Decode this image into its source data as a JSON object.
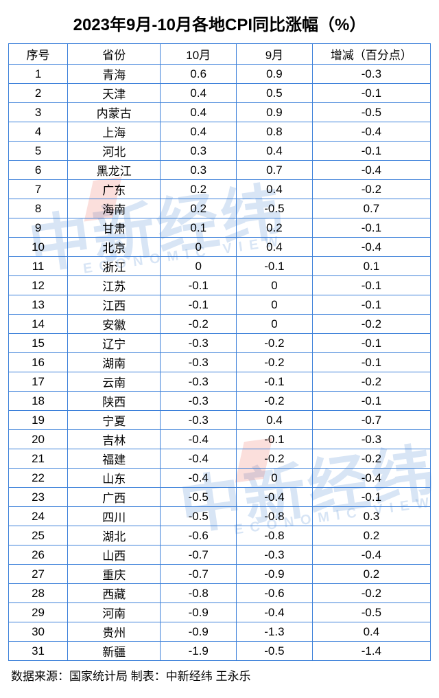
{
  "title": "2023年9月-10月各地CPI同比涨幅（%）",
  "table": {
    "type": "table",
    "border_color": "#3a7fd9",
    "background_color": "#ffffff",
    "text_color": "#000000",
    "header_fontsize": 17,
    "cell_fontsize": 17,
    "title_fontsize": 24,
    "column_widths_pct": [
      14,
      22,
      18,
      18,
      28
    ],
    "columns": [
      "序号",
      "省份",
      "10月",
      "9月",
      "增减（百分点）"
    ],
    "rows": [
      [
        "1",
        "青海",
        "0.6",
        "0.9",
        "-0.3"
      ],
      [
        "2",
        "天津",
        "0.4",
        "0.5",
        "-0.1"
      ],
      [
        "3",
        "内蒙古",
        "0.4",
        "0.9",
        "-0.5"
      ],
      [
        "4",
        "上海",
        "0.4",
        "0.8",
        "-0.4"
      ],
      [
        "5",
        "河北",
        "0.3",
        "0.4",
        "-0.1"
      ],
      [
        "6",
        "黑龙江",
        "0.3",
        "0.7",
        "-0.4"
      ],
      [
        "7",
        "广东",
        "0.2",
        "0.4",
        "-0.2"
      ],
      [
        "8",
        "海南",
        "0.2",
        "-0.5",
        "0.7"
      ],
      [
        "9",
        "甘肃",
        "0.1",
        "0.2",
        "-0.1"
      ],
      [
        "10",
        "北京",
        "0",
        "0.4",
        "-0.4"
      ],
      [
        "11",
        "浙江",
        "0",
        "-0.1",
        "0.1"
      ],
      [
        "12",
        "江苏",
        "-0.1",
        "0",
        "-0.1"
      ],
      [
        "13",
        "江西",
        "-0.1",
        "0",
        "-0.1"
      ],
      [
        "14",
        "安徽",
        "-0.2",
        "0",
        "-0.2"
      ],
      [
        "15",
        "辽宁",
        "-0.3",
        "-0.2",
        "-0.1"
      ],
      [
        "16",
        "湖南",
        "-0.3",
        "-0.2",
        "-0.1"
      ],
      [
        "17",
        "云南",
        "-0.3",
        "-0.1",
        "-0.2"
      ],
      [
        "18",
        "陕西",
        "-0.3",
        "-0.2",
        "-0.1"
      ],
      [
        "19",
        "宁夏",
        "-0.3",
        "0.4",
        "-0.7"
      ],
      [
        "20",
        "吉林",
        "-0.4",
        "-0.1",
        "-0.3"
      ],
      [
        "21",
        "福建",
        "-0.4",
        "-0.2",
        "-0.2"
      ],
      [
        "22",
        "山东",
        "-0.4",
        "0",
        "-0.4"
      ],
      [
        "23",
        "广西",
        "-0.5",
        "-0.4",
        "-0.1"
      ],
      [
        "24",
        "四川",
        "-0.5",
        "-0.8",
        "0.3"
      ],
      [
        "25",
        "湖北",
        "-0.6",
        "-0.8",
        "0.2"
      ],
      [
        "26",
        "山西",
        "-0.7",
        "-0.3",
        "-0.4"
      ],
      [
        "27",
        "重庆",
        "-0.7",
        "-0.9",
        "0.2"
      ],
      [
        "28",
        "西藏",
        "-0.8",
        "-0.6",
        "-0.2"
      ],
      [
        "29",
        "河南",
        "-0.9",
        "-0.4",
        "-0.5"
      ],
      [
        "30",
        "贵州",
        "-0.9",
        "-1.3",
        "0.4"
      ],
      [
        "31",
        "新疆",
        "-1.9",
        "-0.5",
        "-1.4"
      ]
    ]
  },
  "footer": "数据来源：国家统计局 制表：中新经纬 王永乐",
  "watermark": {
    "text": "中新经纬",
    "subtext": "ECONOMIC VIEW",
    "text_color": "#2f73c9",
    "accent_color": "#e74c3c",
    "opacity": 0.18
  }
}
